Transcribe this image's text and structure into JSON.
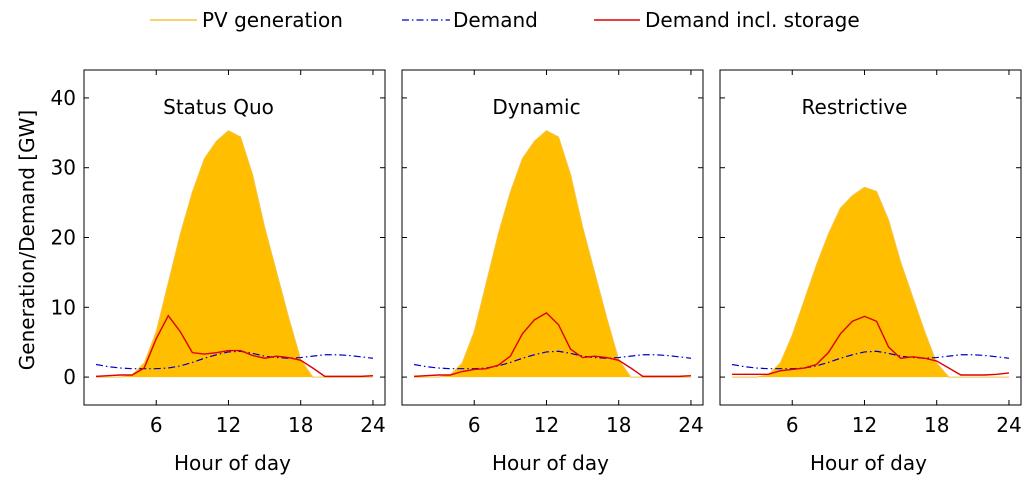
{
  "chart_data": {
    "type": "area",
    "legend": {
      "placement": "top",
      "entries": [
        {
          "label": "PV generation",
          "color": "#f5c242",
          "style": "solid"
        },
        {
          "label": "Demand",
          "color": "#0000cc",
          "style": "dashdot"
        },
        {
          "label": "Demand incl. storage",
          "color": "#e00000",
          "style": "solid"
        }
      ]
    },
    "ylabel": "Generation/Demand [GW]",
    "xlabel": "Hour of day",
    "xlim": [
      0,
      25
    ],
    "ylim": [
      -4,
      44
    ],
    "xticks": [
      6,
      12,
      18,
      24
    ],
    "yticks": [
      0,
      10,
      20,
      30,
      40
    ],
    "fill_color": "#ffbe00",
    "hours": [
      1,
      2,
      3,
      4,
      5,
      6,
      7,
      8,
      9,
      10,
      11,
      12,
      13,
      14,
      15,
      16,
      17,
      18,
      19,
      20,
      21,
      22,
      23,
      24
    ],
    "demand": [
      1.8,
      1.5,
      1.3,
      1.2,
      1.2,
      1.2,
      1.3,
      1.6,
      2.1,
      2.7,
      3.2,
      3.6,
      3.7,
      3.4,
      3.0,
      2.8,
      2.7,
      2.8,
      3.0,
      3.2,
      3.2,
      3.1,
      2.9,
      2.7
    ],
    "panels": [
      {
        "title": "Status Quo",
        "pv": [
          0,
          0,
          0,
          0.3,
          2.0,
          6.5,
          13.5,
          20.5,
          26.5,
          31.3,
          33.8,
          35.3,
          34.4,
          29.0,
          21.5,
          15.0,
          8.5,
          2.5,
          0,
          0,
          0,
          0,
          0,
          0
        ],
        "demand_storage": [
          0.1,
          0.2,
          0.3,
          0.3,
          1.3,
          5.5,
          8.8,
          6.5,
          3.5,
          3.3,
          3.5,
          3.8,
          3.8,
          3.1,
          2.7,
          3.0,
          2.8,
          2.4,
          1.3,
          0.1,
          0.1,
          0.1,
          0.1,
          0.2
        ]
      },
      {
        "title": "Dynamic",
        "pv": [
          0,
          0,
          0,
          0.3,
          2.0,
          6.5,
          13.5,
          20.5,
          26.5,
          31.3,
          33.8,
          35.3,
          34.4,
          29.0,
          21.5,
          15.0,
          8.5,
          2.5,
          0,
          0,
          0,
          0,
          0,
          0
        ],
        "demand_storage": [
          0.1,
          0.2,
          0.3,
          0.3,
          0.8,
          1.1,
          1.2,
          1.7,
          3.0,
          6.2,
          8.2,
          9.2,
          7.5,
          4.0,
          2.8,
          3.0,
          2.8,
          2.4,
          1.3,
          0.1,
          0.1,
          0.1,
          0.1,
          0.2
        ]
      },
      {
        "title": "Restrictive",
        "pv": [
          0,
          0,
          0,
          0.3,
          2.0,
          6.0,
          11.0,
          16.0,
          20.5,
          24.2,
          26.0,
          27.2,
          26.6,
          22.5,
          16.5,
          11.5,
          6.5,
          2.0,
          0,
          0,
          0,
          0,
          0,
          0
        ],
        "demand_storage": [
          0.4,
          0.4,
          0.4,
          0.4,
          0.9,
          1.1,
          1.3,
          1.8,
          3.5,
          6.2,
          8.0,
          8.7,
          8.0,
          4.3,
          2.7,
          2.9,
          2.7,
          2.3,
          1.3,
          0.3,
          0.3,
          0.3,
          0.4,
          0.6
        ]
      }
    ]
  }
}
